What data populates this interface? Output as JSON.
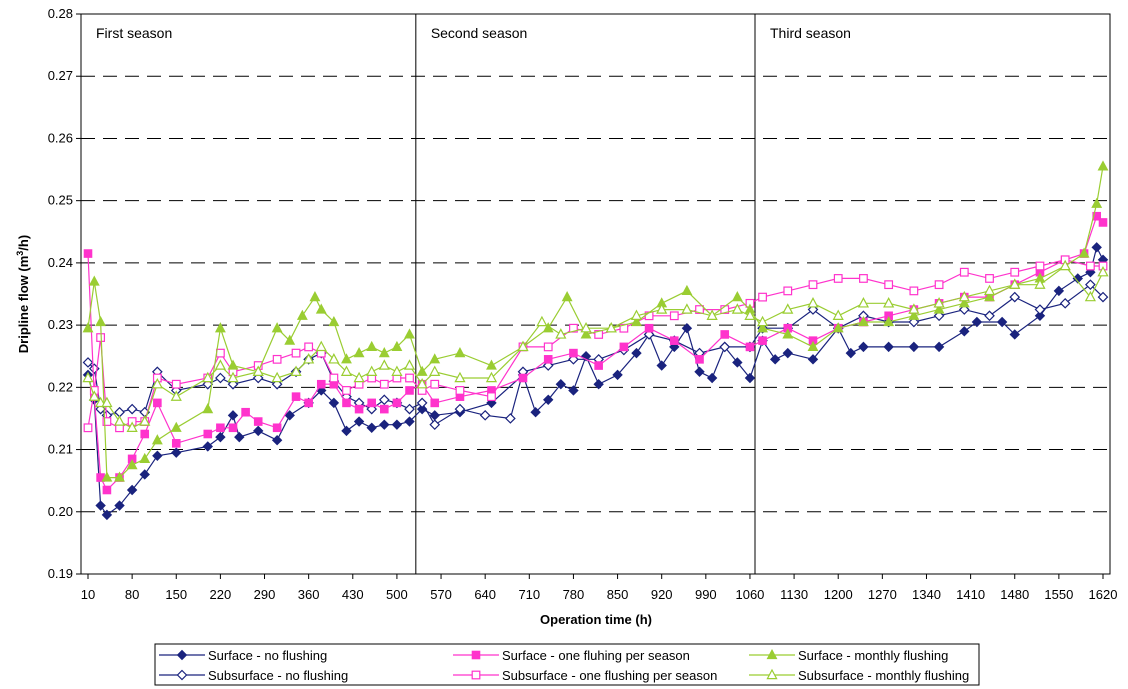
{
  "chart_data": {
    "type": "line",
    "xlabel": "Operation time (h)",
    "ylabel_main": "Dripline flow (m",
    "ylabel_sup": "3",
    "ylabel_end": "/h)",
    "ylim": [
      0.19,
      0.28
    ],
    "xlim": [
      10,
      1620
    ],
    "yticks": [
      "0.19",
      "0.20",
      "0.21",
      "0.22",
      "0.23",
      "0.24",
      "0.25",
      "0.26",
      "0.27",
      "0.28"
    ],
    "xticks": [
      "10",
      "80",
      "150",
      "220",
      "290",
      "360",
      "430",
      "500",
      "570",
      "640",
      "710",
      "780",
      "850",
      "920",
      "990",
      "1060",
      "1130",
      "1200",
      "1270",
      "1340",
      "1410",
      "1480",
      "1550",
      "1620"
    ],
    "grid": "horizontal dashed",
    "legend_position": "bottom",
    "seasons": [
      {
        "label": "First season",
        "start": 10,
        "end": 530
      },
      {
        "label": "Second season",
        "start": 530,
        "end": 1068
      },
      {
        "label": "Third season",
        "start": 1068,
        "end": 1620
      }
    ],
    "series": [
      {
        "name": "Surface - no flushing",
        "color": "#1a237e",
        "marker": "diamond-filled",
        "x": [
          10,
          20,
          30,
          40,
          60,
          80,
          100,
          120,
          150,
          200,
          220,
          240,
          250,
          280,
          310,
          330,
          360,
          380,
          400,
          420,
          440,
          460,
          480,
          500,
          520,
          540,
          560,
          600,
          650,
          700,
          720,
          740,
          760,
          780,
          800,
          820,
          850,
          880,
          900,
          920,
          940,
          960,
          980,
          1000,
          1020,
          1040,
          1060,
          1080,
          1100,
          1120,
          1160,
          1200,
          1220,
          1240,
          1280,
          1320,
          1360,
          1400,
          1420,
          1460,
          1480,
          1520,
          1550,
          1580,
          1600,
          1610,
          1620
        ],
        "y": [
          0.222,
          0.218,
          0.201,
          0.1995,
          0.201,
          0.2035,
          0.206,
          0.209,
          0.2095,
          0.2105,
          0.212,
          0.2155,
          0.212,
          0.213,
          0.2115,
          0.2155,
          0.2175,
          0.2195,
          0.2175,
          0.213,
          0.2145,
          0.2135,
          0.214,
          0.214,
          0.2145,
          0.2165,
          0.2155,
          0.216,
          0.2175,
          0.222,
          0.216,
          0.218,
          0.2205,
          0.2195,
          0.225,
          0.2205,
          0.222,
          0.2255,
          0.2285,
          0.2235,
          0.2265,
          0.2295,
          0.2225,
          0.2215,
          0.2265,
          0.224,
          0.2215,
          0.2275,
          0.2245,
          0.2255,
          0.2245,
          0.2295,
          0.2255,
          0.2265,
          0.2265,
          0.2265,
          0.2265,
          0.229,
          0.2305,
          0.2305,
          0.2285,
          0.2315,
          0.2355,
          0.2375,
          0.2385,
          0.2425,
          0.2405
        ]
      },
      {
        "name": "Subsurface - no flushing",
        "color": "#1a237e",
        "marker": "diamond-open",
        "x": [
          10,
          20,
          30,
          40,
          60,
          80,
          100,
          120,
          150,
          200,
          220,
          240,
          280,
          310,
          340,
          360,
          380,
          400,
          420,
          440,
          460,
          480,
          500,
          520,
          540,
          560,
          600,
          640,
          680,
          700,
          740,
          780,
          820,
          860,
          900,
          940,
          980,
          1020,
          1060,
          1080,
          1120,
          1160,
          1200,
          1240,
          1280,
          1320,
          1360,
          1400,
          1440,
          1480,
          1520,
          1560,
          1600,
          1620
        ],
        "y": [
          0.224,
          0.223,
          0.2165,
          0.2155,
          0.216,
          0.2165,
          0.216,
          0.2225,
          0.2195,
          0.2205,
          0.2215,
          0.2205,
          0.2215,
          0.2205,
          0.2225,
          0.2245,
          0.2255,
          0.221,
          0.2185,
          0.2175,
          0.2165,
          0.218,
          0.2175,
          0.2165,
          0.2175,
          0.214,
          0.2165,
          0.2155,
          0.215,
          0.2225,
          0.2235,
          0.2245,
          0.2245,
          0.226,
          0.2285,
          0.2275,
          0.2255,
          0.2265,
          0.2265,
          0.2295,
          0.2295,
          0.2325,
          0.2295,
          0.2315,
          0.2305,
          0.2305,
          0.2315,
          0.2325,
          0.2315,
          0.2345,
          0.2325,
          0.2335,
          0.2365,
          0.2345
        ]
      },
      {
        "name": "Surface - one fluhing per season",
        "color": "#ff33cc",
        "marker": "square-filled",
        "x": [
          10,
          20,
          30,
          40,
          60,
          80,
          100,
          120,
          150,
          200,
          220,
          240,
          260,
          280,
          310,
          340,
          360,
          380,
          400,
          420,
          440,
          460,
          480,
          500,
          520,
          540,
          560,
          600,
          650,
          700,
          740,
          780,
          820,
          860,
          900,
          940,
          980,
          1020,
          1060,
          1080,
          1120,
          1160,
          1200,
          1240,
          1280,
          1320,
          1360,
          1400,
          1440,
          1480,
          1520,
          1560,
          1590,
          1610,
          1620
        ],
        "y": [
          0.2415,
          0.2185,
          0.2055,
          0.2035,
          0.2055,
          0.2085,
          0.2125,
          0.2175,
          0.211,
          0.2125,
          0.2135,
          0.2135,
          0.216,
          0.2145,
          0.2135,
          0.2185,
          0.2175,
          0.2205,
          0.2205,
          0.2175,
          0.2165,
          0.2175,
          0.2165,
          0.2175,
          0.2195,
          0.2205,
          0.2175,
          0.2185,
          0.2195,
          0.2215,
          0.2245,
          0.2255,
          0.2235,
          0.2265,
          0.2295,
          0.2275,
          0.2245,
          0.2285,
          0.2265,
          0.2275,
          0.2295,
          0.2275,
          0.2295,
          0.2305,
          0.2315,
          0.2325,
          0.2335,
          0.2345,
          0.2345,
          0.2365,
          0.2385,
          0.2405,
          0.2415,
          0.2475,
          0.2465
        ]
      },
      {
        "name": "Subsurface - one flushing per season",
        "color": "#ff33cc",
        "marker": "square-open",
        "x": [
          10,
          20,
          30,
          40,
          60,
          80,
          100,
          120,
          150,
          200,
          220,
          240,
          280,
          310,
          340,
          360,
          380,
          400,
          420,
          440,
          460,
          480,
          500,
          520,
          540,
          560,
          600,
          650,
          700,
          740,
          780,
          820,
          860,
          900,
          940,
          980,
          1020,
          1060,
          1080,
          1120,
          1160,
          1200,
          1240,
          1280,
          1320,
          1360,
          1400,
          1440,
          1480,
          1520,
          1560,
          1600,
          1620
        ],
        "y": [
          0.2135,
          0.2195,
          0.228,
          0.2145,
          0.2135,
          0.2145,
          0.2145,
          0.2215,
          0.2205,
          0.2215,
          0.2255,
          0.2225,
          0.2235,
          0.2245,
          0.2255,
          0.2265,
          0.2255,
          0.2215,
          0.2195,
          0.2205,
          0.2215,
          0.2205,
          0.2215,
          0.2215,
          0.2195,
          0.2205,
          0.2195,
          0.2185,
          0.2265,
          0.2265,
          0.2295,
          0.2285,
          0.2295,
          0.2315,
          0.2315,
          0.2325,
          0.2325,
          0.2335,
          0.2345,
          0.2355,
          0.2365,
          0.2375,
          0.2375,
          0.2365,
          0.2355,
          0.2365,
          0.2385,
          0.2375,
          0.2385,
          0.2395,
          0.2405,
          0.2395,
          0.2395
        ]
      },
      {
        "name": "Surface - monthly flushing",
        "color": "#9acd32",
        "marker": "triangle-filled",
        "x": [
          10,
          20,
          30,
          40,
          60,
          80,
          100,
          120,
          150,
          200,
          220,
          240,
          280,
          310,
          330,
          350,
          370,
          380,
          400,
          420,
          440,
          460,
          480,
          500,
          520,
          540,
          560,
          600,
          650,
          700,
          740,
          770,
          800,
          840,
          880,
          920,
          960,
          1000,
          1040,
          1060,
          1080,
          1120,
          1160,
          1200,
          1240,
          1280,
          1320,
          1360,
          1400,
          1440,
          1480,
          1520,
          1560,
          1590,
          1610,
          1620
        ],
        "y": [
          0.2295,
          0.237,
          0.2305,
          0.2055,
          0.2055,
          0.2075,
          0.2085,
          0.2115,
          0.2135,
          0.2165,
          0.2295,
          0.2235,
          0.2225,
          0.2295,
          0.2275,
          0.2315,
          0.2345,
          0.2325,
          0.2305,
          0.2245,
          0.2255,
          0.2265,
          0.2255,
          0.2265,
          0.2285,
          0.2225,
          0.2245,
          0.2255,
          0.2235,
          0.2265,
          0.2295,
          0.2345,
          0.2285,
          0.2295,
          0.2305,
          0.2335,
          0.2355,
          0.2315,
          0.2345,
          0.2325,
          0.2295,
          0.2285,
          0.2265,
          0.2295,
          0.2305,
          0.2305,
          0.2315,
          0.2325,
          0.2335,
          0.2345,
          0.2365,
          0.2375,
          0.2395,
          0.2415,
          0.2495,
          0.2555
        ]
      },
      {
        "name": "Subsurface - monthly flushing",
        "color": "#9acd32",
        "marker": "triangle-open",
        "x": [
          10,
          20,
          30,
          40,
          60,
          80,
          100,
          120,
          150,
          200,
          220,
          240,
          280,
          310,
          340,
          360,
          380,
          400,
          420,
          440,
          460,
          480,
          500,
          520,
          540,
          560,
          600,
          650,
          700,
          730,
          760,
          800,
          840,
          880,
          920,
          960,
          1000,
          1040,
          1060,
          1080,
          1120,
          1160,
          1200,
          1240,
          1280,
          1320,
          1360,
          1400,
          1440,
          1480,
          1520,
          1560,
          1600,
          1620
        ],
        "y": [
          0.2215,
          0.2185,
          0.2175,
          0.2175,
          0.2145,
          0.2135,
          0.2145,
          0.2205,
          0.2185,
          0.2215,
          0.2235,
          0.2215,
          0.2225,
          0.2215,
          0.2225,
          0.2245,
          0.2265,
          0.2245,
          0.2225,
          0.2215,
          0.2225,
          0.2235,
          0.2225,
          0.2235,
          0.2205,
          0.2225,
          0.2215,
          0.2215,
          0.2265,
          0.2305,
          0.2285,
          0.2295,
          0.2295,
          0.2315,
          0.2325,
          0.2325,
          0.2315,
          0.2325,
          0.2315,
          0.2305,
          0.2325,
          0.2335,
          0.2315,
          0.2335,
          0.2335,
          0.2325,
          0.2335,
          0.2345,
          0.2355,
          0.2365,
          0.2365,
          0.2395,
          0.2345,
          0.2385
        ]
      }
    ]
  }
}
